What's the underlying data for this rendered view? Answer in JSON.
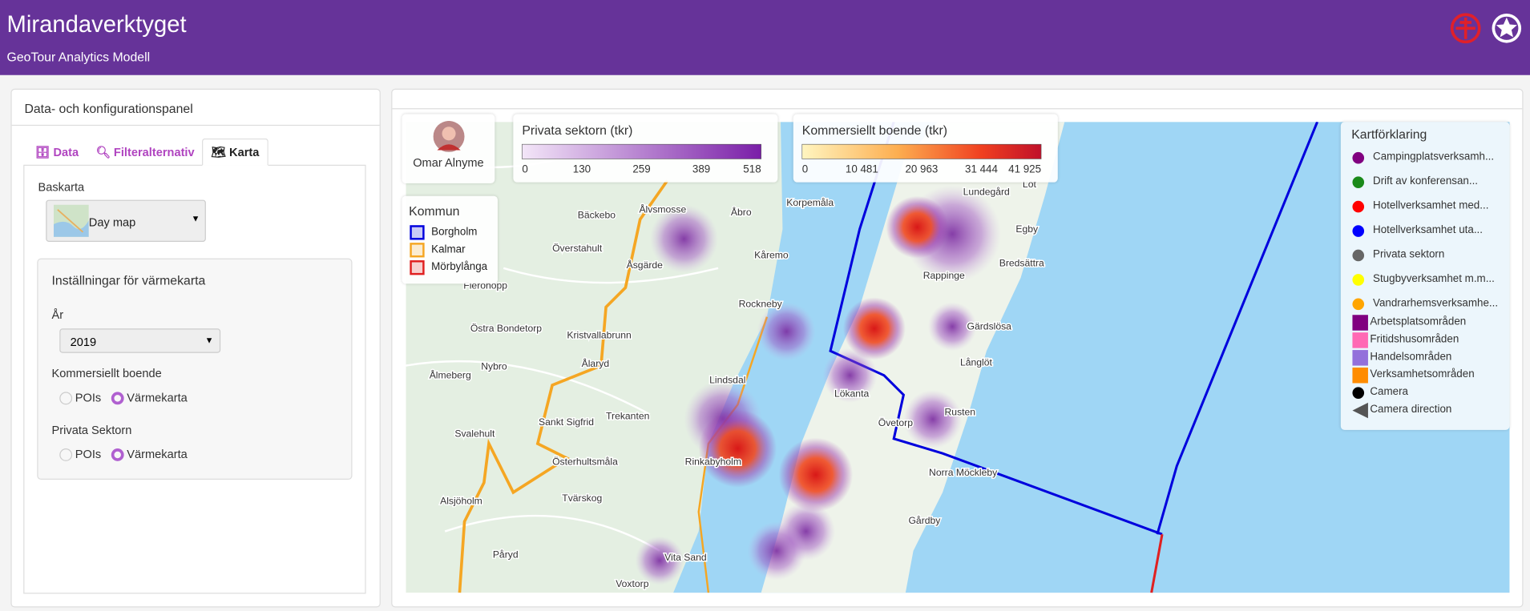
{
  "header": {
    "title": "Mirandaverktyget",
    "subtitle": "GeoTour Analytics Modell"
  },
  "panel": {
    "title": "Data- och konfigurationspanel",
    "tabs": [
      "Data",
      "Filteralternativ",
      "Karta"
    ],
    "basemap_label": "Baskarta",
    "basemap": "Day map",
    "settings": {
      "title": "Inställningar för värmekarta",
      "year_label": "År",
      "year": "2019",
      "groups": [
        {
          "label": "Kommersiellt boende",
          "options": [
            "POIs",
            "Värmekarta"
          ]
        },
        {
          "label": "Privata Sektorn",
          "options": [
            "POIs",
            "Värmekarta"
          ]
        }
      ]
    }
  },
  "map": {
    "user": "Omar Alnyme",
    "legends": [
      {
        "title": "Privata sektorn (tkr)",
        "ticks": [
          "0",
          "130",
          "259",
          "389",
          "518"
        ]
      },
      {
        "title": "Kommersiellt boende (tkr)",
        "ticks": [
          "0",
          "10 481",
          "20 963",
          "31 444",
          "41 925"
        ]
      }
    ],
    "kommun": {
      "title": "Kommun",
      "items": [
        {
          "name": "Borgholm",
          "color": "#0000dd"
        },
        {
          "name": "Kalmar",
          "color": "#f5a623"
        },
        {
          "name": "Mörbylånga",
          "color": "#e02020"
        }
      ]
    },
    "legend": {
      "title": "Kartförklaring",
      "items": [
        {
          "name": "Campingplatsverksamh...",
          "color": "#800080",
          "shape": "circle"
        },
        {
          "name": "Drift av konferensan...",
          "color": "#1a8a1a",
          "shape": "circle"
        },
        {
          "name": "Hotellverksamhet med...",
          "color": "#ff0000",
          "shape": "circle"
        },
        {
          "name": "Hotellverksamhet uta...",
          "color": "#0000ff",
          "shape": "circle"
        },
        {
          "name": "Privata sektorn",
          "color": "#666666",
          "shape": "circle"
        },
        {
          "name": "Stugbyverksamhet m.m...",
          "color": "#ffff00",
          "shape": "circle"
        },
        {
          "name": "Vandrarhemsverksamhe...",
          "color": "#ffa500",
          "shape": "circle"
        },
        {
          "name": "Arbetsplatsområden",
          "color": "#800080",
          "shape": "square"
        },
        {
          "name": "Fritidshusområden",
          "color": "#ff69b4",
          "shape": "square"
        },
        {
          "name": "Handelsområden",
          "color": "#9370db",
          "shape": "square"
        },
        {
          "name": "Verksamhetsområden",
          "color": "#ff8c00",
          "shape": "square"
        },
        {
          "name": "Camera",
          "color": "#000000",
          "shape": "circle"
        },
        {
          "name": "Camera direction",
          "color": "#555555",
          "shape": "triangle"
        }
      ]
    },
    "places": [
      "Bäckebo",
      "Ålvsmosse",
      "Åbro",
      "Korpemåla",
      "Överstahult",
      "Åsgärde",
      "Kåremo",
      "Flerohopp",
      "Rockneby",
      "Östra Bondetorp",
      "Kristvallabrunn",
      "Ålmeberg",
      "Nybro",
      "Ålaryd",
      "Lindsdal",
      "Sankt Sigfrid",
      "Trekanten",
      "Svalehult",
      "Rinkabyholm",
      "Österhultsmåla",
      "Alsjöholm",
      "Tvärskog",
      "Påryd",
      "Vita Sand",
      "Voxtorp",
      "Lundegård",
      "Egby",
      "Bredsättra",
      "Rappinge",
      "Gärdslösa",
      "Långlöt",
      "Lökanta",
      "Övetorp",
      "Rusten",
      "Norra Möckleby",
      "Gårdby",
      "Löt"
    ]
  }
}
